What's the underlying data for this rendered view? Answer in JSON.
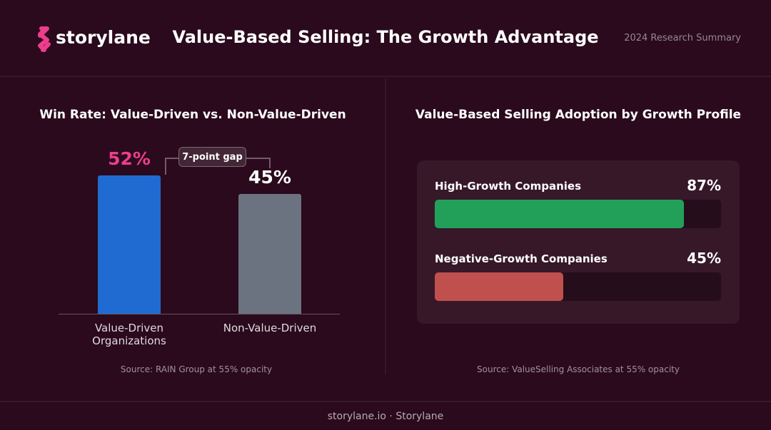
{
  "header": {
    "logo": "storylane",
    "title": "Value-Based Selling: The Growth Advantage",
    "subtitle": "2024 Research Summary"
  },
  "chart_data": [
    {
      "type": "bar",
      "title": "Win Rate: Value-Driven vs. Non-Value-Driven",
      "categories": [
        "Value-Driven Organizations",
        "Non-Value-Driven"
      ],
      "values": [
        52,
        45
      ],
      "value_labels": [
        "52%",
        "45%"
      ],
      "colors": [
        "#1f6bd1",
        "#6b7280"
      ],
      "label_colors": [
        "#ec3d8e",
        "#ffffff"
      ],
      "ylim": [
        0,
        55
      ],
      "annotation": "7-point gap",
      "source": "Source: RAIN Group at 55% opacity"
    },
    {
      "type": "hbar",
      "title": "Value-Based Selling Adoption by Growth Profile",
      "categories": [
        "High-Growth Companies",
        "Negative-Growth Companies"
      ],
      "values": [
        87,
        45
      ],
      "value_labels": [
        "87%",
        "45%"
      ],
      "colors": [
        "#22a05a",
        "#c0504d"
      ],
      "xlim": [
        0,
        100
      ],
      "source": "Source: ValueSelling Associates at 55% opacity"
    }
  ],
  "footer": "storylane.io · Storylane"
}
